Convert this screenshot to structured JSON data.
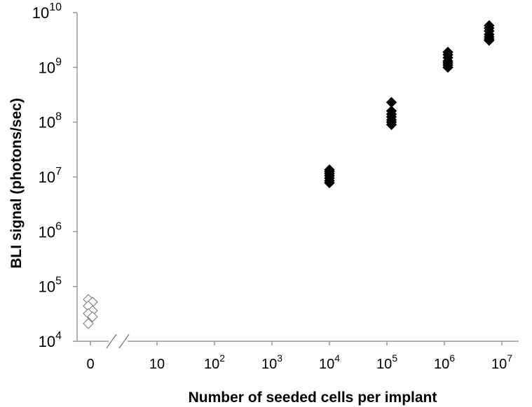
{
  "chart_data": {
    "type": "scatter",
    "xlabel": "Number of seeded cells per implant",
    "ylabel": "BLI signal (photons/sec)",
    "y_scale": "log",
    "ylim": [
      10000,
      10000000000
    ],
    "y_ticks": [
      {
        "base": "10",
        "exp": "4",
        "value": 10000
      },
      {
        "base": "10",
        "exp": "5",
        "value": 100000
      },
      {
        "base": "10",
        "exp": "6",
        "value": 1000000
      },
      {
        "base": "10",
        "exp": "7",
        "value": 10000000
      },
      {
        "base": "10",
        "exp": "8",
        "value": 100000000
      },
      {
        "base": "10",
        "exp": "9",
        "value": 1000000000
      },
      {
        "base": "10",
        "exp": "10",
        "value": 10000000000
      }
    ],
    "x_scale": "log-with-broken-zero",
    "xlim": [
      1,
      10000000
    ],
    "x_ticks": [
      {
        "base": "0",
        "exp": "",
        "value": 0
      },
      {
        "base": "10",
        "exp": "",
        "value": 10
      },
      {
        "base": "10",
        "exp": "2",
        "value": 100
      },
      {
        "base": "10",
        "exp": "3",
        "value": 1000
      },
      {
        "base": "10",
        "exp": "4",
        "value": 10000
      },
      {
        "base": "10",
        "exp": "5",
        "value": 100000
      },
      {
        "base": "10",
        "exp": "6",
        "value": 1000000
      },
      {
        "base": "10",
        "exp": "7",
        "value": 10000000
      }
    ],
    "axis_break": true,
    "grid": false,
    "series": [
      {
        "marker": "open-diamond",
        "color": "#888888",
        "points": [
          {
            "x": 0,
            "y": 58000
          },
          {
            "x": 0,
            "y": 52000
          },
          {
            "x": 0,
            "y": 44000
          },
          {
            "x": 0,
            "y": 36000
          },
          {
            "x": 0,
            "y": 32000
          },
          {
            "x": 0,
            "y": 28000
          },
          {
            "x": 0,
            "y": 21000
          }
        ]
      },
      {
        "marker": "filled-diamond",
        "color": "#000000",
        "points": [
          {
            "x": 10000,
            "y": 13500000
          },
          {
            "x": 10000,
            "y": 12500000
          },
          {
            "x": 10000,
            "y": 11500000
          },
          {
            "x": 10000,
            "y": 10500000
          },
          {
            "x": 10000,
            "y": 9500000
          },
          {
            "x": 10000,
            "y": 8500000
          },
          {
            "x": 10000,
            "y": 7800000
          },
          {
            "x": 120000,
            "y": 230000000
          },
          {
            "x": 120000,
            "y": 160000000
          },
          {
            "x": 120000,
            "y": 140000000
          },
          {
            "x": 120000,
            "y": 125000000
          },
          {
            "x": 120000,
            "y": 110000000
          },
          {
            "x": 120000,
            "y": 100000000
          },
          {
            "x": 120000,
            "y": 90000000
          },
          {
            "x": 1150000,
            "y": 1900000000
          },
          {
            "x": 1150000,
            "y": 1700000000
          },
          {
            "x": 1150000,
            "y": 1500000000
          },
          {
            "x": 1150000,
            "y": 1300000000
          },
          {
            "x": 1150000,
            "y": 1200000000
          },
          {
            "x": 1150000,
            "y": 1100000000
          },
          {
            "x": 1150000,
            "y": 1000000000
          },
          {
            "x": 6000000,
            "y": 5800000000
          },
          {
            "x": 6000000,
            "y": 5200000000
          },
          {
            "x": 6000000,
            "y": 4600000000
          },
          {
            "x": 6000000,
            "y": 4000000000
          },
          {
            "x": 6000000,
            "y": 3600000000
          },
          {
            "x": 6000000,
            "y": 3300000000
          },
          {
            "x": 6000000,
            "y": 3100000000
          }
        ]
      }
    ]
  }
}
